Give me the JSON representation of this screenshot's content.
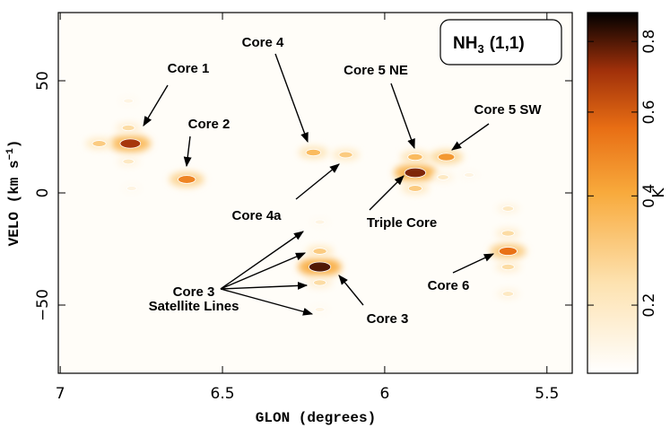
{
  "chart_data": {
    "type": "scatter",
    "badge": {
      "species": "NH",
      "subscript": "3",
      "transition": "(1,1)"
    },
    "x_label": "GLON (degrees)",
    "y_label": [
      "VELO (km s",
      "−1",
      ")"
    ],
    "colorbar_label": "K",
    "xlim": [
      7.006,
      5.422
    ],
    "ylim": [
      -80.4,
      80.4
    ],
    "xticks": [
      7,
      6.5,
      6,
      5.5
    ],
    "yticks": [
      {
        "value": -50,
        "label": "−50"
      },
      0,
      50
    ],
    "clim": [
      0.11,
      0.89
    ],
    "colorbar_scale": "sqrt",
    "cticks": [
      0.2,
      0.4,
      0.6,
      0.8
    ],
    "x": [
      6.784,
      6.88,
      6.79,
      6.79,
      6.79,
      6.78,
      6.61,
      6.22,
      6.12,
      5.906,
      5.906,
      5.906,
      5.81,
      5.82,
      5.74,
      6.2,
      6.2,
      6.2,
      6.2,
      6.2,
      5.62,
      5.62,
      5.62,
      5.62,
      5.62
    ],
    "y": [
      22,
      22,
      29,
      41,
      14,
      2,
      6,
      18,
      17,
      9,
      16,
      2,
      16,
      7,
      8,
      -33,
      -26,
      -40,
      -13,
      -52,
      -26,
      -18,
      -33,
      -7,
      -45
    ],
    "intensity": [
      0.7,
      0.3,
      0.25,
      0.15,
      0.2,
      0.15,
      0.5,
      0.35,
      0.3,
      0.75,
      0.35,
      0.3,
      0.45,
      0.2,
      0.15,
      0.8,
      0.3,
      0.25,
      0.15,
      0.15,
      0.55,
      0.25,
      0.25,
      0.2,
      0.2
    ],
    "annotations": [
      "Core 1",
      "Core 2",
      "Core 4",
      "Core 4a",
      "Core 5 NE",
      "Core 5 SW",
      "Triple Core",
      "Core 3",
      "Satellite Lines",
      "Core 3",
      "Core 6"
    ]
  }
}
